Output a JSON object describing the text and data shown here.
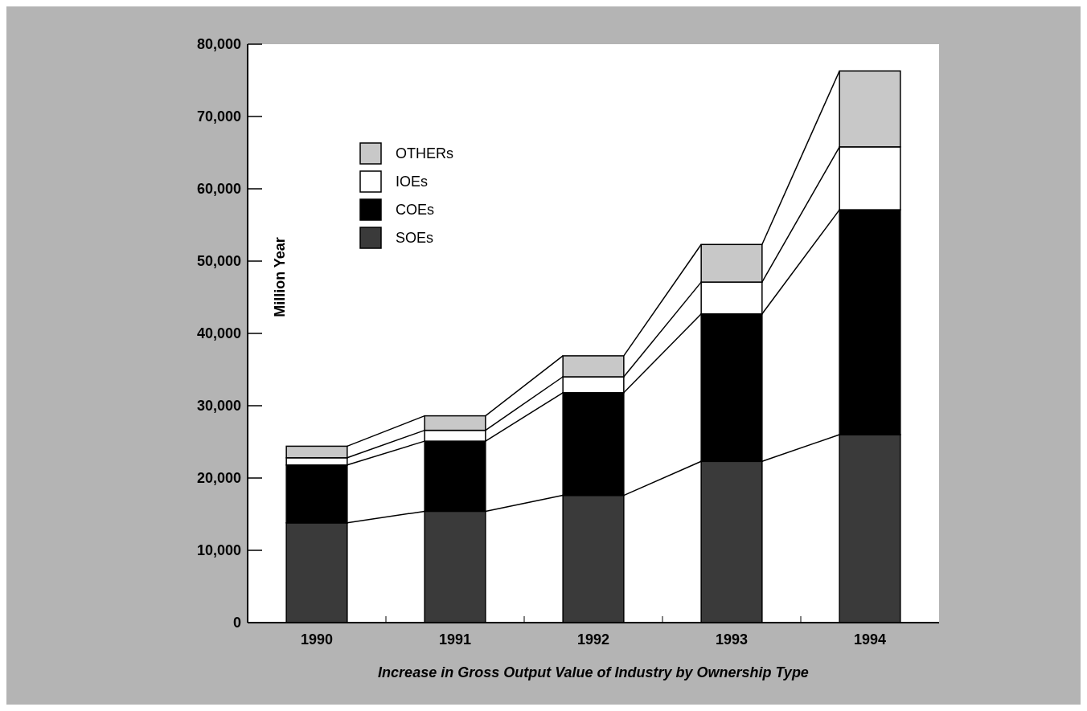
{
  "chart_data": {
    "type": "bar",
    "stacked": true,
    "xlabel": "Increase in Gross Output Value of Industry by Ownership Type",
    "ylabel": "Million Year",
    "categories": [
      "1990",
      "1991",
      "1992",
      "1993",
      "1994"
    ],
    "series": [
      {
        "name": "SOEs",
        "color": "#3a3a3a",
        "values": [
          13800,
          15400,
          17600,
          22300,
          26000
        ]
      },
      {
        "name": "COEs",
        "color": "#000000",
        "values": [
          8000,
          9700,
          14200,
          20400,
          31100
        ]
      },
      {
        "name": "IOEs",
        "color": "#ffffff",
        "values": [
          1000,
          1500,
          2200,
          4400,
          8700
        ]
      },
      {
        "name": "OTHERs",
        "color": "#c8c8c8",
        "values": [
          1600,
          2000,
          2900,
          5200,
          10500
        ]
      }
    ],
    "ylim": [
      0,
      80000
    ],
    "yticks": [
      {
        "value": 0,
        "label": "0"
      },
      {
        "value": 10000,
        "label": "10,000"
      },
      {
        "value": 20000,
        "label": "20,000"
      },
      {
        "value": 30000,
        "label": "30,000"
      },
      {
        "value": 40000,
        "label": "40,000"
      },
      {
        "value": 50000,
        "label": "50,000"
      },
      {
        "value": 60000,
        "label": "60,000"
      },
      {
        "value": 70000,
        "label": "70,000"
      },
      {
        "value": 80000,
        "label": "80,000"
      }
    ],
    "legend": "top left"
  }
}
